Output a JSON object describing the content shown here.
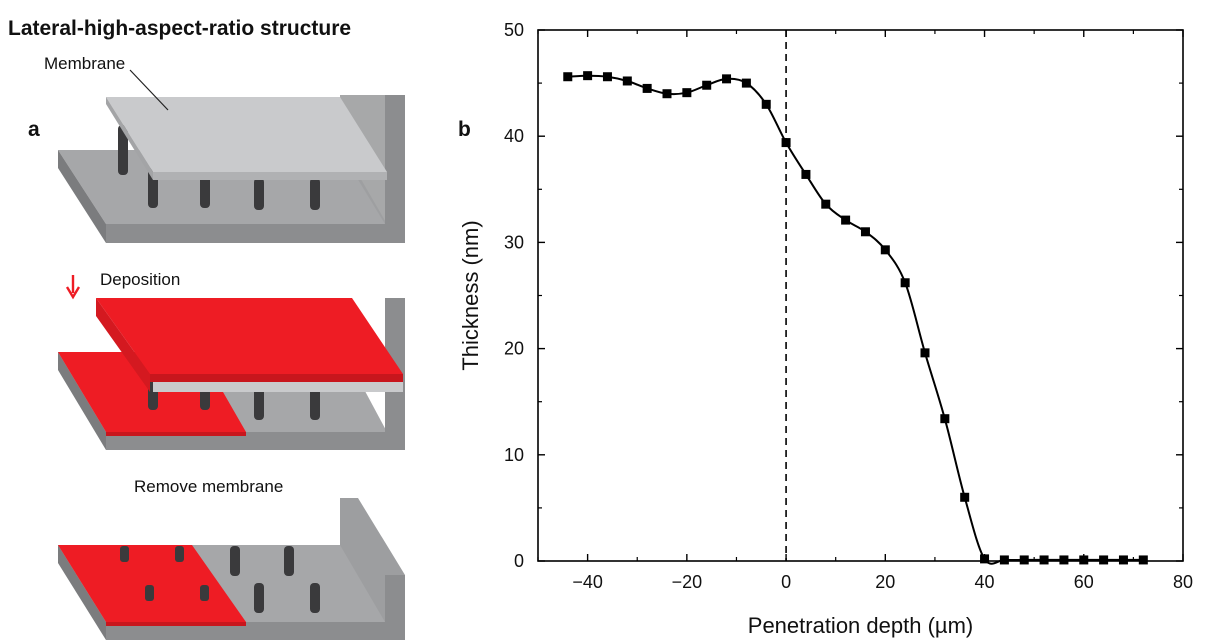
{
  "panel_a": {
    "title": "Lateral-high-aspect-ratio structure",
    "label": "a",
    "step1_label": "Membrane",
    "step2_label": "Deposition",
    "step3_label": "Remove membrane"
  },
  "colors": {
    "substrate_top": "#a6a7a9",
    "substrate_front": "#8c8d8f",
    "substrate_side": "#7b7c7e",
    "membrane": "#c9cacc",
    "deposit": "#ee1c24",
    "pillar": "#3a3a3c",
    "curve": "#000000"
  },
  "chart_data": {
    "type": "line",
    "panel_label": "b",
    "xlabel": "Penetration depth (µm)",
    "ylabel": "Thickness (nm)",
    "xlim": [
      -50,
      80
    ],
    "ylim": [
      0,
      50
    ],
    "xticks": [
      -40,
      -20,
      0,
      20,
      40,
      60,
      80
    ],
    "yticks": [
      0,
      10,
      20,
      30,
      40,
      50
    ],
    "xtick_labels": [
      "−40",
      "−20",
      "0",
      "20",
      "40",
      "60",
      "80"
    ],
    "ytick_labels": [
      "0",
      "10",
      "20",
      "30",
      "40",
      "50"
    ],
    "reference_line_x": 0,
    "grid": false,
    "series": [
      {
        "marker": "square",
        "x": [
          -44,
          -40,
          -36,
          -32,
          -28,
          -24,
          -20,
          -16,
          -12,
          -8,
          -4,
          0,
          4,
          8,
          12,
          16,
          20,
          24,
          28,
          32,
          36,
          40,
          44,
          48,
          52,
          56,
          60,
          64,
          68,
          72
        ],
        "y": [
          45.6,
          45.7,
          45.6,
          45.2,
          44.5,
          44.0,
          44.1,
          44.8,
          45.4,
          45.0,
          43.0,
          39.4,
          36.4,
          33.6,
          32.1,
          31.0,
          29.3,
          26.2,
          19.6,
          13.4,
          6.0,
          0.2,
          0.1,
          0.1,
          0.1,
          0.1,
          0.1,
          0.1,
          0.1,
          0.1
        ]
      }
    ]
  }
}
